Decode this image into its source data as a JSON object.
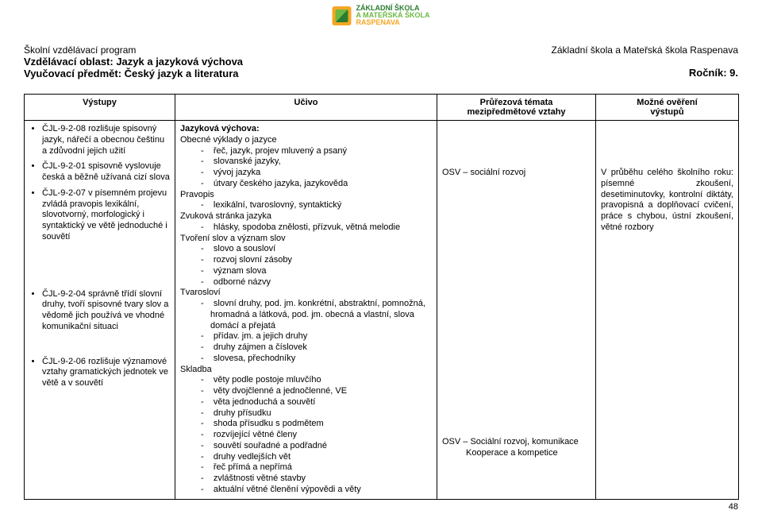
{
  "logo": {
    "l1": "ZÁKLADNÍ ŠKOLA",
    "l2": "A MATEŘSKÁ ŠKOLA",
    "l3": "RASPENAVA"
  },
  "header": {
    "left1": "Školní vzdělávací program",
    "left2": "Vzdělávací oblast: Jazyk a jazyková výchova",
    "left3": "Vyučovací předmět: Český jazyk a literatura",
    "right1": "Základní škola a Mateřská škola Raspenava",
    "right2": "Ročník: 9."
  },
  "table": {
    "th1": "Výstupy",
    "th2": "Učivo",
    "th3a": "Průřezová témata",
    "th3b": "mezipředmětové vztahy",
    "th4a": "Možné ověření",
    "th4b": "výstupů"
  },
  "col1": {
    "b1": "ČJL-9-2-08 rozlišuje spisovný jazyk, nářečí a obecnou češtinu a zdůvodní jejich užití",
    "b2": "ČJL-9-2-01 spisovně vyslovuje česká a běžně užívaná cizí slova",
    "b3": "ČJL-9-2-07 v písemném projevu zvládá pravopis lexikální, slovotvorný, morfologický i syntaktický ve větě jednoduché i souvětí",
    "b4": "ČJL-9-2-04 správně třídí slovní druhy, tvoří spisovné tvary slov a vědomě jich používá ve vhodné komunikační situaci",
    "b5": "ČJL-9-2-06 rozlišuje významové vztahy gramatických jednotek ve větě a v souvětí"
  },
  "col2": {
    "h1": "Jazyková výchova:",
    "h2": "Obecné výklady o jazyce",
    "l1": [
      "řeč, jazyk, projev mluvený a psaný",
      "slovanské jazyky,",
      "vývoj jazyka",
      "útvary českého jazyka, jazykověda"
    ],
    "h3": "Pravopis",
    "l3": [
      "lexikální, tvaroslovný, syntaktický"
    ],
    "h4": "Zvuková stránka jazyka",
    "l4": [
      "hlásky, spodoba znělosti, přízvuk, větná melodie"
    ],
    "h5": "Tvoření slov a význam slov",
    "l5": [
      "slovo a sousloví",
      "rozvoj slovní zásoby",
      "význam slova",
      "odborné názvy"
    ],
    "h6": "Tvarosloví",
    "l6": [
      "slovní druhy, pod. jm. konkrétní, abstraktní, pomnožná, hromadná a látková, pod. jm. obecná a vlastní, slova domácí a přejatá",
      "přídav. jm. a jejich druhy",
      "druhy zájmen a číslovek",
      "slovesa, přechodníky"
    ],
    "h7": "Skladba",
    "l7": [
      "věty podle postoje mluvčího",
      "věty dvojčlenné a jednočlenné, VE",
      "věta jednoduchá a souvětí",
      "druhy přísudku",
      "shoda přísudku s podmětem",
      "rozvíjející větné členy",
      "souvětí souřadné a podřadné",
      "druhy vedlejších vět",
      "řeč přímá a nepřímá",
      "zvláštnosti větné stavby",
      "aktuální větné členění výpovědi a věty"
    ]
  },
  "col3": {
    "t1": "OSV – sociální rozvoj",
    "t2": "OSV – Sociální rozvoj, komunikace",
    "t3": "Kooperace a kompetice"
  },
  "col4": {
    "p": "V průběhu celého školního roku: písemné zkoušení, desetiminutovky, kontrolní diktáty, pravopisná a doplňovací cvičení, práce s chybou, ústní zkoušení, větné rozbory"
  },
  "pagenum": "48"
}
